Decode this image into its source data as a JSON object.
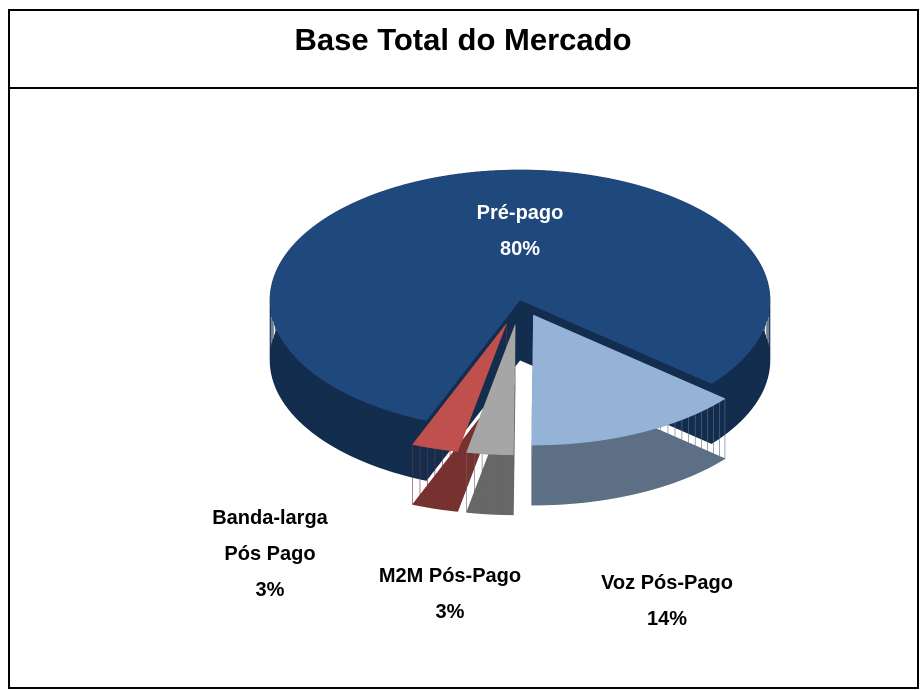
{
  "chart_data": {
    "type": "pie",
    "title": "Base Total do Mercado",
    "categories": [
      "Pré-pago",
      "Voz Pós-Pago",
      "M2M Pós-Pago",
      "Banda-larga Pós Pago"
    ],
    "values": [
      80,
      14,
      3,
      3
    ],
    "value_labels": [
      "80%",
      "14%",
      "3%",
      "3%"
    ],
    "colors": [
      "#1f497d",
      "#95b3d7",
      "#a6a6a6",
      "#c0504d"
    ]
  }
}
